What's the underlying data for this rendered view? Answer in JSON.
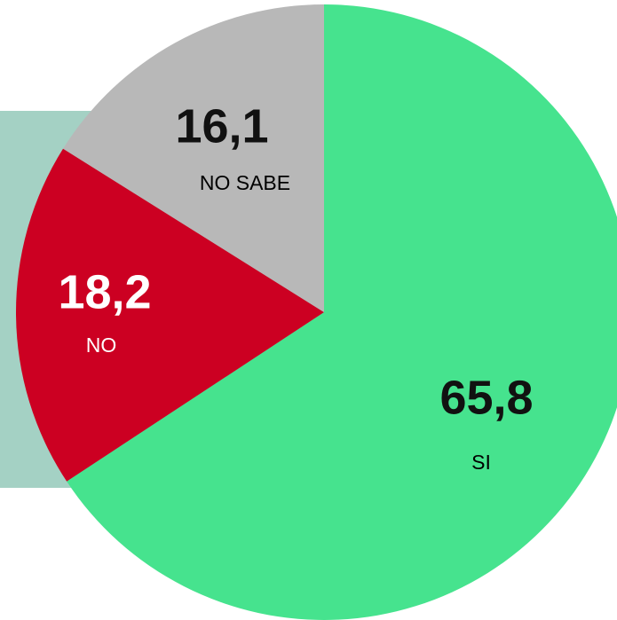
{
  "chart_data": {
    "type": "pie",
    "categories": [
      "SI",
      "NO",
      "NO SABE"
    ],
    "values": [
      65.8,
      18.2,
      16.1
    ],
    "value_labels": [
      "65,8",
      "18,2",
      "16,1"
    ],
    "colors": [
      "#46e38e",
      "#cc0022",
      "#b8b8b8"
    ]
  }
}
